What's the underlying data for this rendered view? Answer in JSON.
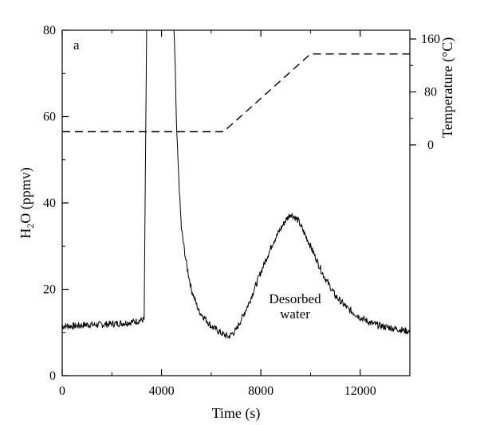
{
  "chart_data": {
    "type": "line",
    "panel_label": "a",
    "xlabel": "Time (s)",
    "ylabel_main": "H",
    "ylabel_sub": "2",
    "ylabel_rest": "O (ppmv)",
    "ylabel_right": "Temperature (°C)",
    "xlim": [
      0,
      14000
    ],
    "ylim": [
      0,
      80
    ],
    "ylim_right_ticks": [
      0,
      80,
      160
    ],
    "x_ticks": [
      0,
      4000,
      8000,
      12000
    ],
    "x_tick_labels": [
      "0",
      "4000",
      "8000",
      "12000"
    ],
    "y_ticks": [
      0,
      20,
      40,
      60,
      80
    ],
    "y_tick_labels": [
      "0",
      "20",
      "40",
      "60",
      "80"
    ],
    "y_right_tick_labels": [
      "0",
      "80",
      "160"
    ],
    "annotation_line1": "Desorbed",
    "annotation_line2": "water",
    "grid": false,
    "series": [
      {
        "style": "solid",
        "x": [
          0,
          500,
          1000,
          1500,
          2000,
          2500,
          3000,
          3300,
          3400,
          3500,
          3700,
          4000,
          4300,
          4500,
          4550,
          4600,
          4700,
          4800,
          5000,
          5200,
          5500,
          6000,
          6500,
          6700,
          7000,
          7500,
          8000,
          8500,
          9000,
          9200,
          9500,
          10000,
          10500,
          11000,
          11500,
          12000,
          12500,
          13000,
          13500,
          14000
        ],
        "y": [
          11.5,
          11.5,
          11.8,
          11.8,
          12.0,
          12.2,
          12.6,
          13.0,
          80,
          80,
          80,
          80,
          80,
          80,
          72,
          58,
          45,
          34,
          26,
          20,
          15,
          11.5,
          9.5,
          9.0,
          10.5,
          16.5,
          24,
          31,
          36,
          37.5,
          36,
          30,
          23.5,
          18.5,
          15.5,
          13.5,
          12.0,
          11.3,
          10.8,
          10.2
        ]
      },
      {
        "style": "dashed",
        "x": [
          0,
          6500,
          10000,
          14000
        ],
        "y": [
          56.5,
          56.5,
          74.5,
          74.5
        ]
      }
    ]
  }
}
